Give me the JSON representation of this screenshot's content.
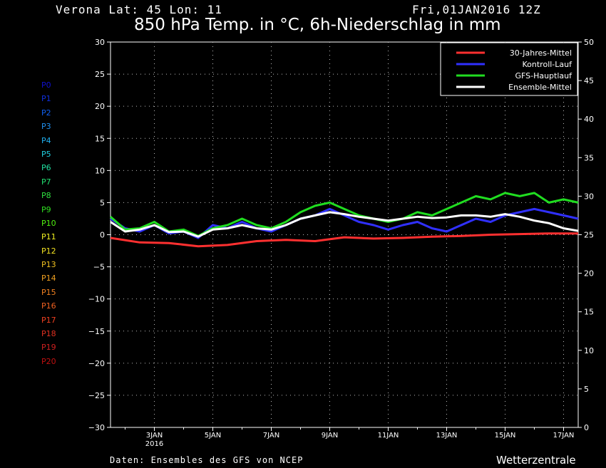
{
  "header": {
    "location": "Verona   Lat: 45 Lon: 11",
    "run_time": "Fri,01JAN2016 12Z",
    "title": "850 hPa Temp. in °C, 6h-Niederschlag in mm"
  },
  "footer": {
    "credit": "Daten: Ensembles des GFS von NCEP",
    "brand": "Wetterzentrale"
  },
  "members": [
    {
      "label": "P0",
      "color": "#1010d0"
    },
    {
      "label": "P1",
      "color": "#1030e0"
    },
    {
      "label": "P2",
      "color": "#1060f0"
    },
    {
      "label": "P3",
      "color": "#2090f0"
    },
    {
      "label": "P4",
      "color": "#20b0f0"
    },
    {
      "label": "P5",
      "color": "#20d0e0"
    },
    {
      "label": "P6",
      "color": "#20e0a0"
    },
    {
      "label": "P7",
      "color": "#20e070"
    },
    {
      "label": "P8",
      "color": "#30e040"
    },
    {
      "label": "P9",
      "color": "#30e020"
    },
    {
      "label": "P10",
      "color": "#50f010"
    },
    {
      "label": "P11",
      "color": "#f0f020"
    },
    {
      "label": "P12",
      "color": "#f0e020"
    },
    {
      "label": "P13",
      "color": "#f0c020"
    },
    {
      "label": "P14",
      "color": "#f0a020"
    },
    {
      "label": "P15",
      "color": "#f08020"
    },
    {
      "label": "P16",
      "color": "#f06020"
    },
    {
      "label": "P17",
      "color": "#f04020"
    },
    {
      "label": "P18",
      "color": "#e03020"
    },
    {
      "label": "P19",
      "color": "#d02020"
    },
    {
      "label": "P20",
      "color": "#c01010"
    }
  ],
  "chart_data": {
    "type": "line",
    "x_ticks": [
      {
        "day": 3,
        "label": "3JAN",
        "sublabel": "2016"
      },
      {
        "day": 5,
        "label": "5JAN"
      },
      {
        "day": 7,
        "label": "7JAN"
      },
      {
        "day": 9,
        "label": "9JAN"
      },
      {
        "day": 11,
        "label": "11JAN"
      },
      {
        "day": 13,
        "label": "13JAN"
      },
      {
        "day": 15,
        "label": "15JAN"
      },
      {
        "day": 17,
        "label": "17JAN"
      }
    ],
    "xlim_days": [
      1.5,
      17.5
    ],
    "ylim_left": [
      -30,
      30
    ],
    "yticks_left": [
      -30,
      -25,
      -20,
      -15,
      -10,
      -5,
      0,
      5,
      10,
      15,
      20,
      25,
      30
    ],
    "ylim_right": [
      0,
      50
    ],
    "yticks_right": [
      0,
      5,
      10,
      15,
      20,
      25,
      30,
      35,
      40,
      45,
      50
    ],
    "grid": true,
    "legend_position": "top-right",
    "series": [
      {
        "name": "30-Jahres-Mittel",
        "color": "#ff3030",
        "axis": "left",
        "x": [
          1.5,
          2.5,
          3.5,
          4.5,
          5.5,
          6.5,
          7.5,
          8.5,
          9.5,
          10.5,
          11.5,
          12.5,
          13.5,
          14.5,
          15.5,
          16.5,
          17.5
        ],
        "y": [
          -0.5,
          -1.2,
          -1.3,
          -1.8,
          -1.6,
          -1.0,
          -0.8,
          -1.0,
          -0.4,
          -0.6,
          -0.5,
          -0.3,
          -0.2,
          0.0,
          0.1,
          0.2,
          0.2
        ]
      },
      {
        "name": "Kontroll-Lauf",
        "color": "#3030ff",
        "axis": "left",
        "x": [
          1.5,
          2,
          2.5,
          3,
          3.5,
          4,
          4.5,
          5,
          5.5,
          6,
          6.5,
          7,
          7.5,
          8,
          8.5,
          9,
          9.5,
          10,
          10.5,
          11,
          11.5,
          12,
          12.5,
          13,
          13.5,
          14,
          14.5,
          15,
          15.5,
          16,
          16.5,
          17,
          17.5
        ],
        "y": [
          2.5,
          1.0,
          0.5,
          1.5,
          0.2,
          0.5,
          -0.5,
          1.5,
          1.0,
          2.0,
          1.0,
          0.5,
          1.5,
          2.5,
          3.0,
          4.0,
          3.0,
          2.0,
          1.5,
          0.8,
          1.5,
          2.0,
          1.0,
          0.5,
          1.5,
          2.5,
          2.0,
          3.0,
          3.5,
          4.0,
          3.5,
          3.0,
          2.5
        ]
      },
      {
        "name": "GFS-Hauptlauf",
        "color": "#20dd20",
        "axis": "left",
        "x": [
          1.5,
          2,
          2.5,
          3,
          3.5,
          4,
          4.5,
          5,
          5.5,
          6,
          6.5,
          7,
          7.5,
          8,
          8.5,
          9,
          9.5,
          10,
          10.5,
          11,
          11.5,
          12,
          12.5,
          13,
          13.5,
          14,
          14.5,
          15,
          15.5,
          16,
          16.5,
          17,
          17.5
        ],
        "y": [
          2.8,
          0.8,
          1.0,
          2.0,
          0.5,
          0.8,
          -0.2,
          1.0,
          1.5,
          2.5,
          1.5,
          1.0,
          2.0,
          3.5,
          4.5,
          5.0,
          4.0,
          3.0,
          2.5,
          2.0,
          2.5,
          3.5,
          3.0,
          4.0,
          5.0,
          6.0,
          5.5,
          6.5,
          6.0,
          6.5,
          5.0,
          5.5,
          5.0
        ]
      },
      {
        "name": "Ensemble-Mittel",
        "color": "#ffffff",
        "axis": "left",
        "x": [
          1.5,
          2,
          2.5,
          3,
          3.5,
          4,
          4.5,
          5,
          5.5,
          6,
          6.5,
          7,
          7.5,
          8,
          8.5,
          9,
          9.5,
          10,
          10.5,
          11,
          11.5,
          12,
          12.5,
          13,
          13.5,
          14,
          14.5,
          15,
          15.5,
          16,
          16.5,
          17,
          17.5
        ],
        "y": [
          2.0,
          0.5,
          0.8,
          1.5,
          0.4,
          0.5,
          -0.3,
          0.8,
          1.0,
          1.5,
          1.0,
          0.8,
          1.5,
          2.5,
          3.0,
          3.5,
          3.2,
          2.8,
          2.5,
          2.2,
          2.5,
          2.8,
          2.6,
          2.7,
          3.0,
          3.0,
          2.8,
          3.2,
          2.8,
          2.2,
          1.8,
          1.0,
          0.6
        ]
      }
    ]
  }
}
